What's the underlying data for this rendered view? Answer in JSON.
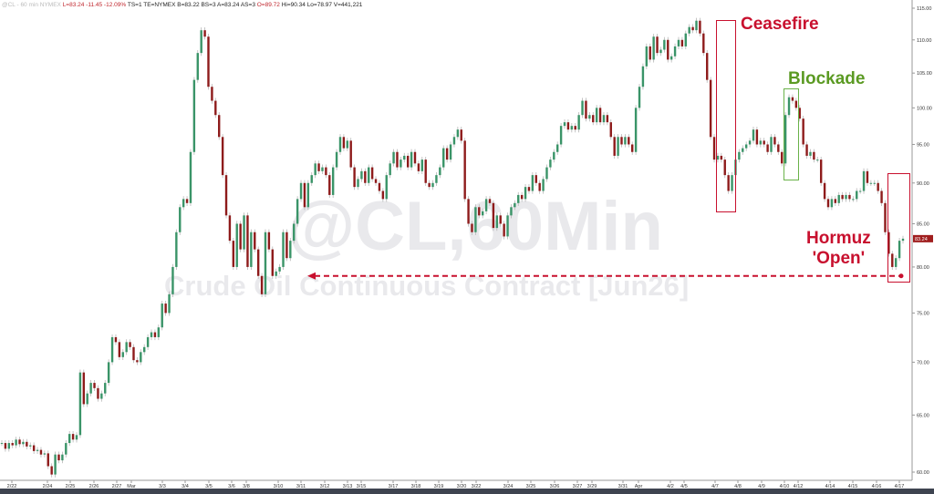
{
  "header": {
    "symbol": "@CL - 60 min NYMEX",
    "last": "L=83.24 -11.45 -12.09%",
    "quote": "TS=1 TE=NYMEX B=83.22 BS=3  A=83.24 AS=3",
    "open": "O=89.72",
    "range": "Hi=90.34 Lo=78.97 V=441,221"
  },
  "watermark": {
    "symbol": "@CL,60Min",
    "contract": "Crude Oil Continuous Contract [Jun26]"
  },
  "annotations": {
    "ceasefire": "Ceasefire",
    "blockade": "Blockade",
    "hormuz_line1": "Hormuz",
    "hormuz_line2": "'Open'"
  },
  "colors": {
    "up": "#3a9468",
    "down": "#8e1b1b",
    "wick": "#b5b5b5",
    "annotation_red": "#c8102e",
    "annotation_green": "#5b9a23",
    "last_price_badge": "#a01e1e"
  },
  "chart_data": {
    "type": "candlestick",
    "interval": "60 min",
    "y_scale": "log",
    "ylim": [
      60,
      115
    ],
    "y_ticks": [
      "115.00",
      "110.00",
      "105.00",
      "100.00",
      "95.00",
      "90.00",
      "85.00",
      "80.00",
      "75.00",
      "70.00",
      "65.00",
      "60.00"
    ],
    "x_ticks": [
      "2/22",
      "2/24",
      "2/25",
      "2/26",
      "2/27",
      "Mar",
      "3/3",
      "3/4",
      "3/5",
      "3/6",
      "3/8",
      "3/10",
      "3/11",
      "3/12",
      "3/13",
      "3/15",
      "3/17",
      "3/18",
      "3/19",
      "3/20",
      "3/22",
      "3/24",
      "3/25",
      "3/26",
      "3/27",
      "3/29",
      "3/31",
      "Apr",
      "4/2",
      "4/5",
      "4/7",
      "4/8",
      "4/9",
      "4/10",
      "4/12",
      "4/14",
      "4/15",
      "4/16",
      "4/17"
    ],
    "last_price": "83.24",
    "reference_level": 79,
    "closes": [
      62.5,
      62,
      62.5,
      62.3,
      62.8,
      62.4,
      62.6,
      62.2,
      62.3,
      61.8,
      61.9,
      61.5,
      61.6,
      60.5,
      59.8,
      61.5,
      61.0,
      61.5,
      62.5,
      63.3,
      62.8,
      63.2,
      69,
      66,
      67,
      68,
      67.5,
      66.5,
      67,
      68,
      70,
      72.5,
      72,
      70.5,
      71,
      72,
      71.5,
      70.2,
      70,
      71,
      71.5,
      72.5,
      73,
      72.5,
      73.5,
      76,
      75,
      77,
      80,
      84,
      87,
      88,
      87.5,
      94,
      104,
      108,
      111.5,
      110.5,
      103,
      101,
      99,
      96,
      91,
      86,
      83,
      80,
      85,
      82,
      86,
      80,
      84,
      82,
      79,
      77,
      84,
      82,
      79,
      79.5,
      80,
      84,
      81,
      83,
      85,
      88,
      90,
      87,
      90,
      91,
      92.5,
      91.5,
      92,
      91,
      88.5,
      92,
      94,
      96,
      94.5,
      95.5,
      92,
      89.5,
      90.5,
      91.5,
      90,
      92,
      90.5,
      90,
      89,
      88,
      91,
      92.5,
      94,
      92,
      93,
      93.5,
      92,
      94,
      92.5,
      91.5,
      93,
      90,
      89.5,
      90,
      91,
      92,
      94.5,
      93,
      95,
      96,
      97,
      95.5,
      88,
      85,
      84,
      87,
      86,
      86.5,
      88,
      87.5,
      84.5,
      86,
      85,
      83.5,
      86,
      87,
      87.5,
      88.5,
      88,
      89.5,
      89,
      91,
      90,
      89,
      90.5,
      92,
      93,
      94,
      95,
      97.5,
      98,
      97,
      97.5,
      97,
      99,
      101,
      98.5,
      99,
      98,
      100,
      98,
      99,
      98,
      96,
      93.5,
      96,
      95,
      96,
      95,
      94,
      100,
      103,
      106,
      109,
      107,
      110.5,
      108,
      108.5,
      110,
      107,
      107.5,
      109,
      110,
      109,
      111,
      112,
      111.5,
      113,
      111,
      108,
      104,
      96,
      93,
      93.5,
      93,
      91,
      89,
      91,
      93,
      94,
      94.5,
      95,
      95.5,
      97,
      95,
      95.5,
      95,
      94,
      96,
      95,
      94,
      92.5,
      99,
      101.5,
      101,
      100,
      98.5,
      95,
      93.5,
      94,
      93,
      93,
      90,
      88,
      87,
      88,
      87.5,
      88.5,
      88,
      88.5,
      88,
      88,
      89,
      89,
      91.5,
      90,
      90,
      90,
      89,
      87.5,
      84,
      81.5,
      80,
      81,
      83,
      83.24
    ]
  }
}
